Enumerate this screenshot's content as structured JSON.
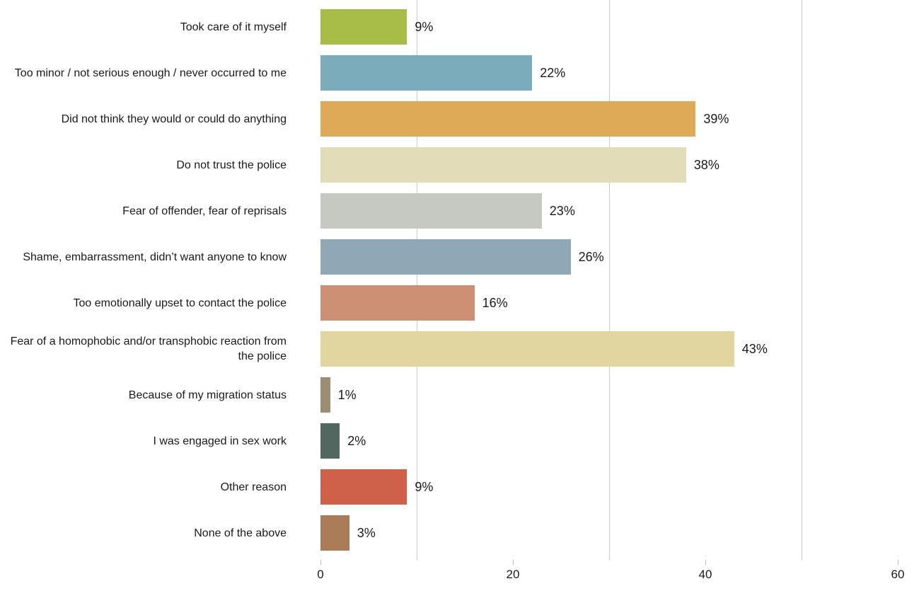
{
  "chart_data": {
    "type": "bar",
    "orientation": "horizontal",
    "title": "",
    "xlabel": "",
    "ylabel": "",
    "xlim": [
      0,
      62
    ],
    "xticks": [
      0,
      20,
      40,
      60
    ],
    "gridlines_x": [
      10,
      30,
      50
    ],
    "grid": "vertical-lines-only",
    "legend": "none",
    "categories": [
      "Took care of it myself",
      "Too minor / not serious enough / never occurred to me",
      "Did not think they would or could do anything",
      "Do not trust the police",
      "Fear of offender, fear of reprisals",
      "Shame, embarrassment, didn’t want anyone to know",
      "Too emotionally upset to contact the police",
      "Fear of a homophobic and/or transphobic reaction from the police",
      "Because of my migration status",
      "I was engaged in sex work",
      "Other reason",
      "None of the above"
    ],
    "values": [
      9,
      22,
      39,
      38,
      23,
      26,
      16,
      43,
      1,
      2,
      9,
      3
    ],
    "value_labels": [
      "9%",
      "22%",
      "39%",
      "38%",
      "23%",
      "26%",
      "16%",
      "43%",
      "1%",
      "2%",
      "9%",
      "3%"
    ],
    "bar_colors": [
      "#a8bd48",
      "#7bacbc",
      "#dfaa58",
      "#e3dcb8",
      "#c6c9c1",
      "#90a7b5",
      "#ce9074",
      "#e2d6a0",
      "#9b8e74",
      "#536761",
      "#cf614a",
      "#aa7d58"
    ],
    "colors": {
      "gridline": "#cccccc",
      "tick": "#bfbfbf",
      "text": "#1a1a1a",
      "background": "#ffffff"
    }
  }
}
